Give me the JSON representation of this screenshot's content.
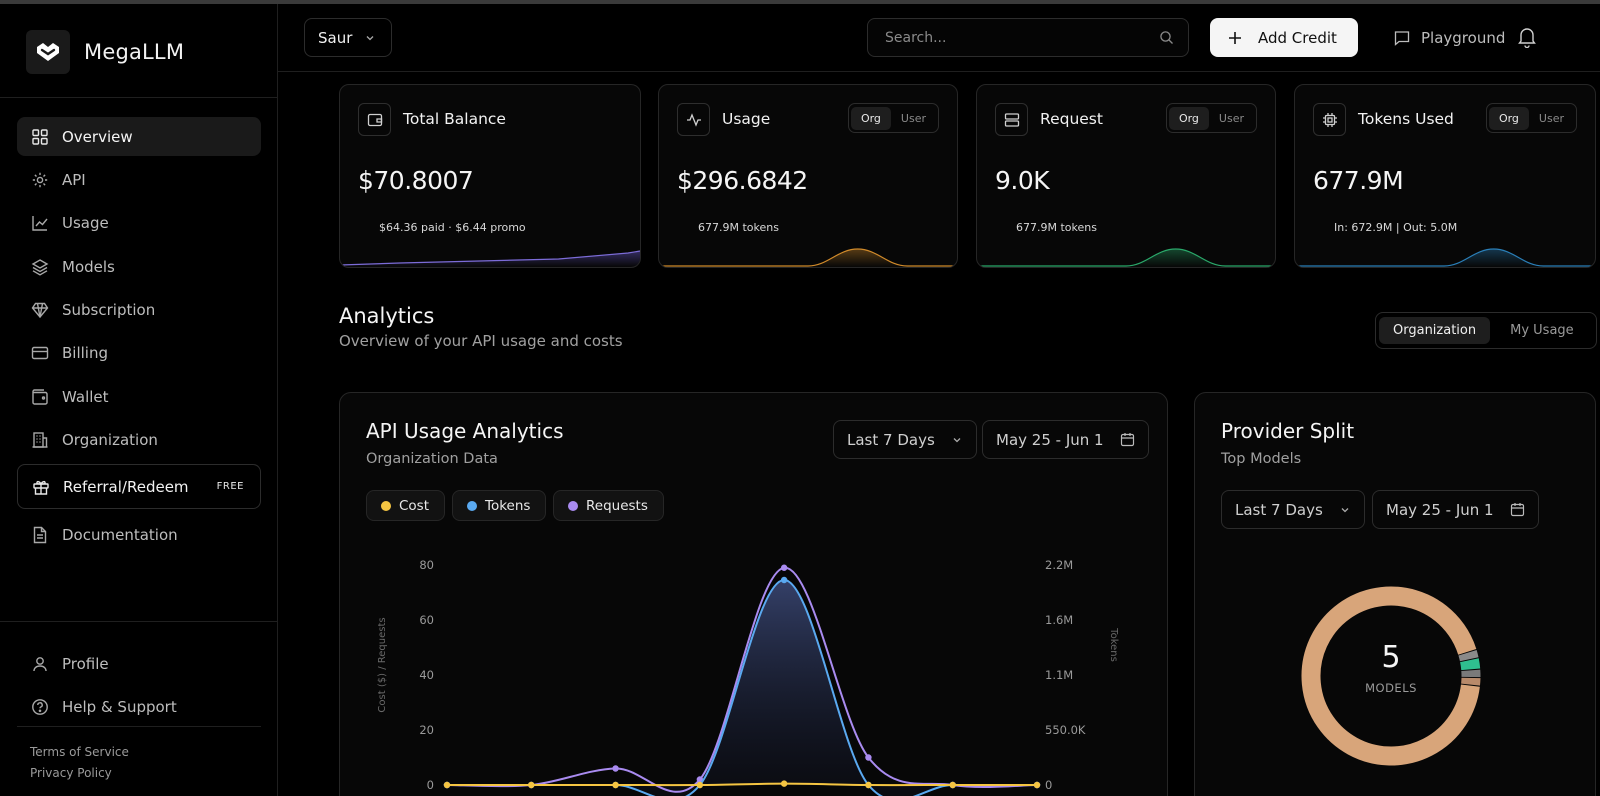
{
  "brand": {
    "name": "MegaLLM"
  },
  "nav": {
    "items": [
      {
        "id": "overview",
        "label": "Overview",
        "icon": "grid-icon",
        "active": true
      },
      {
        "id": "api",
        "label": "API",
        "icon": "gear-icon"
      },
      {
        "id": "usage",
        "label": "Usage",
        "icon": "chart-line-icon"
      },
      {
        "id": "models",
        "label": "Models",
        "icon": "layers-icon"
      },
      {
        "id": "subscription",
        "label": "Subscription",
        "icon": "diamond-icon"
      },
      {
        "id": "billing",
        "label": "Billing",
        "icon": "credit-card-icon"
      },
      {
        "id": "wallet",
        "label": "Wallet",
        "icon": "wallet-icon"
      },
      {
        "id": "organization",
        "label": "Organization",
        "icon": "building-icon"
      }
    ],
    "referral": {
      "label": "Referral/Redeem",
      "badge": "FREE"
    },
    "documentation": "Documentation",
    "profile": "Profile",
    "help": "Help & Support",
    "terms": "Terms of Service",
    "privacy": "Privacy Policy"
  },
  "header": {
    "project": "Saur",
    "search_placeholder": "Search...",
    "add_credit": "Add Credit",
    "playground": "Playground"
  },
  "cards": {
    "balance": {
      "title": "Total Balance",
      "value": "$70.8007",
      "sub": "$64.36 paid · $6.44 promo",
      "spark_color": "#7c6cd8"
    },
    "usage": {
      "title": "Usage",
      "value": "$296.6842",
      "sub": "677.9M tokens",
      "seg": [
        "Org",
        "User"
      ],
      "spark_color": "#d08a2a"
    },
    "request": {
      "title": "Request",
      "value": "9.0K",
      "sub": "677.9M tokens",
      "seg": [
        "Org",
        "User"
      ],
      "spark_color": "#2aa86a"
    },
    "tokens": {
      "title": "Tokens Used",
      "value": "677.9M",
      "sub": "In: 672.9M | Out: 5.0M",
      "seg": [
        "Org",
        "User"
      ],
      "spark_color": "#2a7fb8"
    }
  },
  "analytics": {
    "title": "Analytics",
    "subtitle": "Overview of your API usage and costs",
    "scope": [
      "Organization",
      "My Usage"
    ]
  },
  "api_panel": {
    "title": "API Usage Analytics",
    "subtitle": "Organization Data",
    "range": "Last 7 Days",
    "dates": "May 25 - Jun 1",
    "legend": [
      {
        "label": "Cost",
        "color": "#f5c542"
      },
      {
        "label": "Tokens",
        "color": "#5aa9f0"
      },
      {
        "label": "Requests",
        "color": "#a98bf0"
      }
    ]
  },
  "chart_data": {
    "type": "line",
    "ylabel": "Cost ($) / Requests",
    "y2label": "Tokens",
    "ylim": [
      0,
      80
    ],
    "yticks": [
      "0",
      "20",
      "40",
      "60",
      "80"
    ],
    "y2lim": [
      0,
      2200000
    ],
    "y2ticks": [
      "0",
      "550.0K",
      "1.1M",
      "1.6M",
      "2.2M"
    ],
    "series": [
      {
        "name": "Requests",
        "axis": "left",
        "color": "#a98bf0",
        "values": [
          0,
          0,
          6,
          2,
          79,
          10,
          0,
          0
        ]
      },
      {
        "name": "Tokens",
        "axis": "right",
        "color": "#5aa9f0",
        "values": [
          0,
          0,
          0,
          0,
          2050000,
          0,
          0,
          0
        ]
      },
      {
        "name": "Cost",
        "axis": "left",
        "color": "#f5c542",
        "values": [
          0,
          0,
          0,
          0,
          0.5,
          0,
          0,
          0
        ]
      }
    ]
  },
  "provider_panel": {
    "title": "Provider Split",
    "subtitle": "Top Models",
    "range": "Last 7 Days",
    "dates": "May 25 - Jun 1",
    "count": "5",
    "count_label": "MODELS",
    "segments": [
      {
        "color": "#d8a57a",
        "fraction": 0.92
      },
      {
        "color": "#8a8a8a",
        "fraction": 0.015
      },
      {
        "color": "#2fbf8f",
        "fraction": 0.02
      },
      {
        "color": "#7a7a7a",
        "fraction": 0.015
      },
      {
        "color": "#b88a6a",
        "fraction": 0.015
      }
    ]
  }
}
